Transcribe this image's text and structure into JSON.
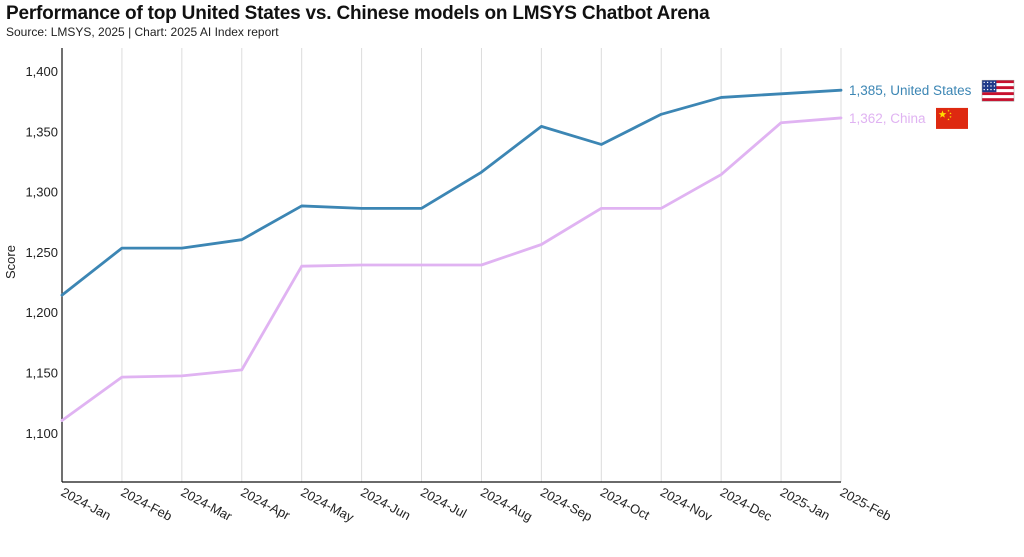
{
  "chart_data": {
    "type": "line",
    "title": "Performance of top United States vs. Chinese models on LMSYS Chatbot Arena",
    "subtitle": "Source: LMSYS, 2025 | Chart: 2025 AI Index report",
    "ylabel": "Score",
    "xlabel": "",
    "categories": [
      "2024-Jan",
      "2024-Feb",
      "2024-Mar",
      "2024-Apr",
      "2024-May",
      "2024-Jun",
      "2024-Jul",
      "2024-Aug",
      "2024-Sep",
      "2024-Oct",
      "2024-Nov",
      "2024-Dec",
      "2025-Jan",
      "2025-Feb"
    ],
    "ylim": [
      1060,
      1420
    ],
    "yticks": [
      1100,
      1150,
      1200,
      1250,
      1300,
      1350,
      1400
    ],
    "ytick_labels": [
      "1,100",
      "1,150",
      "1,200",
      "1,250",
      "1,300",
      "1,350",
      "1,400"
    ],
    "grid": "vertical",
    "series": [
      {
        "name": "United States",
        "color": "#3c86b4",
        "values": [
          1215,
          1254,
          1254,
          1261,
          1289,
          1287,
          1287,
          1317,
          1355,
          1340,
          1365,
          1379,
          1382,
          1385
        ],
        "end_label": "1,385, United States",
        "flag_icon": "us-flag-icon"
      },
      {
        "name": "China",
        "color": "#e0b3f2",
        "values": [
          1111,
          1147,
          1148,
          1153,
          1239,
          1240,
          1240,
          1240,
          1257,
          1287,
          1287,
          1315,
          1358,
          1362
        ],
        "end_label": "1,362, China",
        "flag_icon": "china-flag-icon"
      }
    ]
  }
}
